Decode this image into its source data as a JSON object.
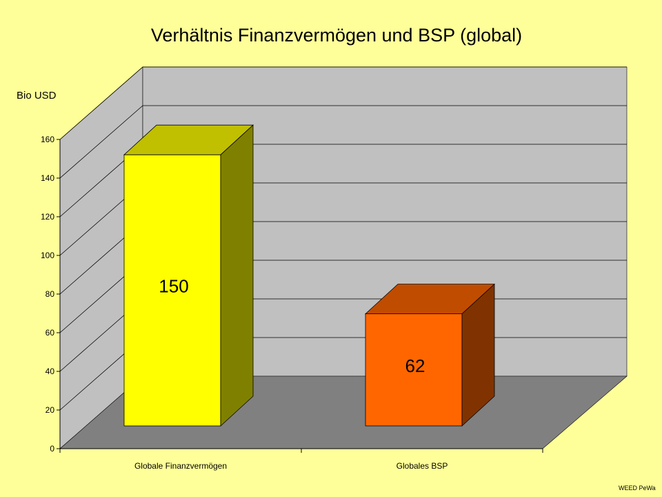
{
  "chart_data": {
    "type": "bar",
    "title": "Verhältnis Finanzvermögen und BSP (global)",
    "ylabel": "Bio USD",
    "xlabel": "",
    "categories": [
      "Globale Finanzvermögen",
      "Globales BSP"
    ],
    "values": [
      150,
      62
    ],
    "data_labels": [
      "150",
      "62"
    ],
    "ylim": [
      0,
      160
    ],
    "yticks": [
      0,
      20,
      40,
      60,
      80,
      100,
      120,
      140,
      160
    ],
    "grid": true,
    "three_d": true,
    "bar_colors": [
      {
        "front": "#ffff00",
        "top": "#c0c000",
        "side": "#808000"
      },
      {
        "front": "#ff6600",
        "top": "#c04c00",
        "side": "#803300"
      }
    ],
    "wall_color": "#c0c0c0",
    "floor_color": "#808080",
    "background": "#ffff99"
  },
  "footer": {
    "credit": "WEED PeWa"
  }
}
